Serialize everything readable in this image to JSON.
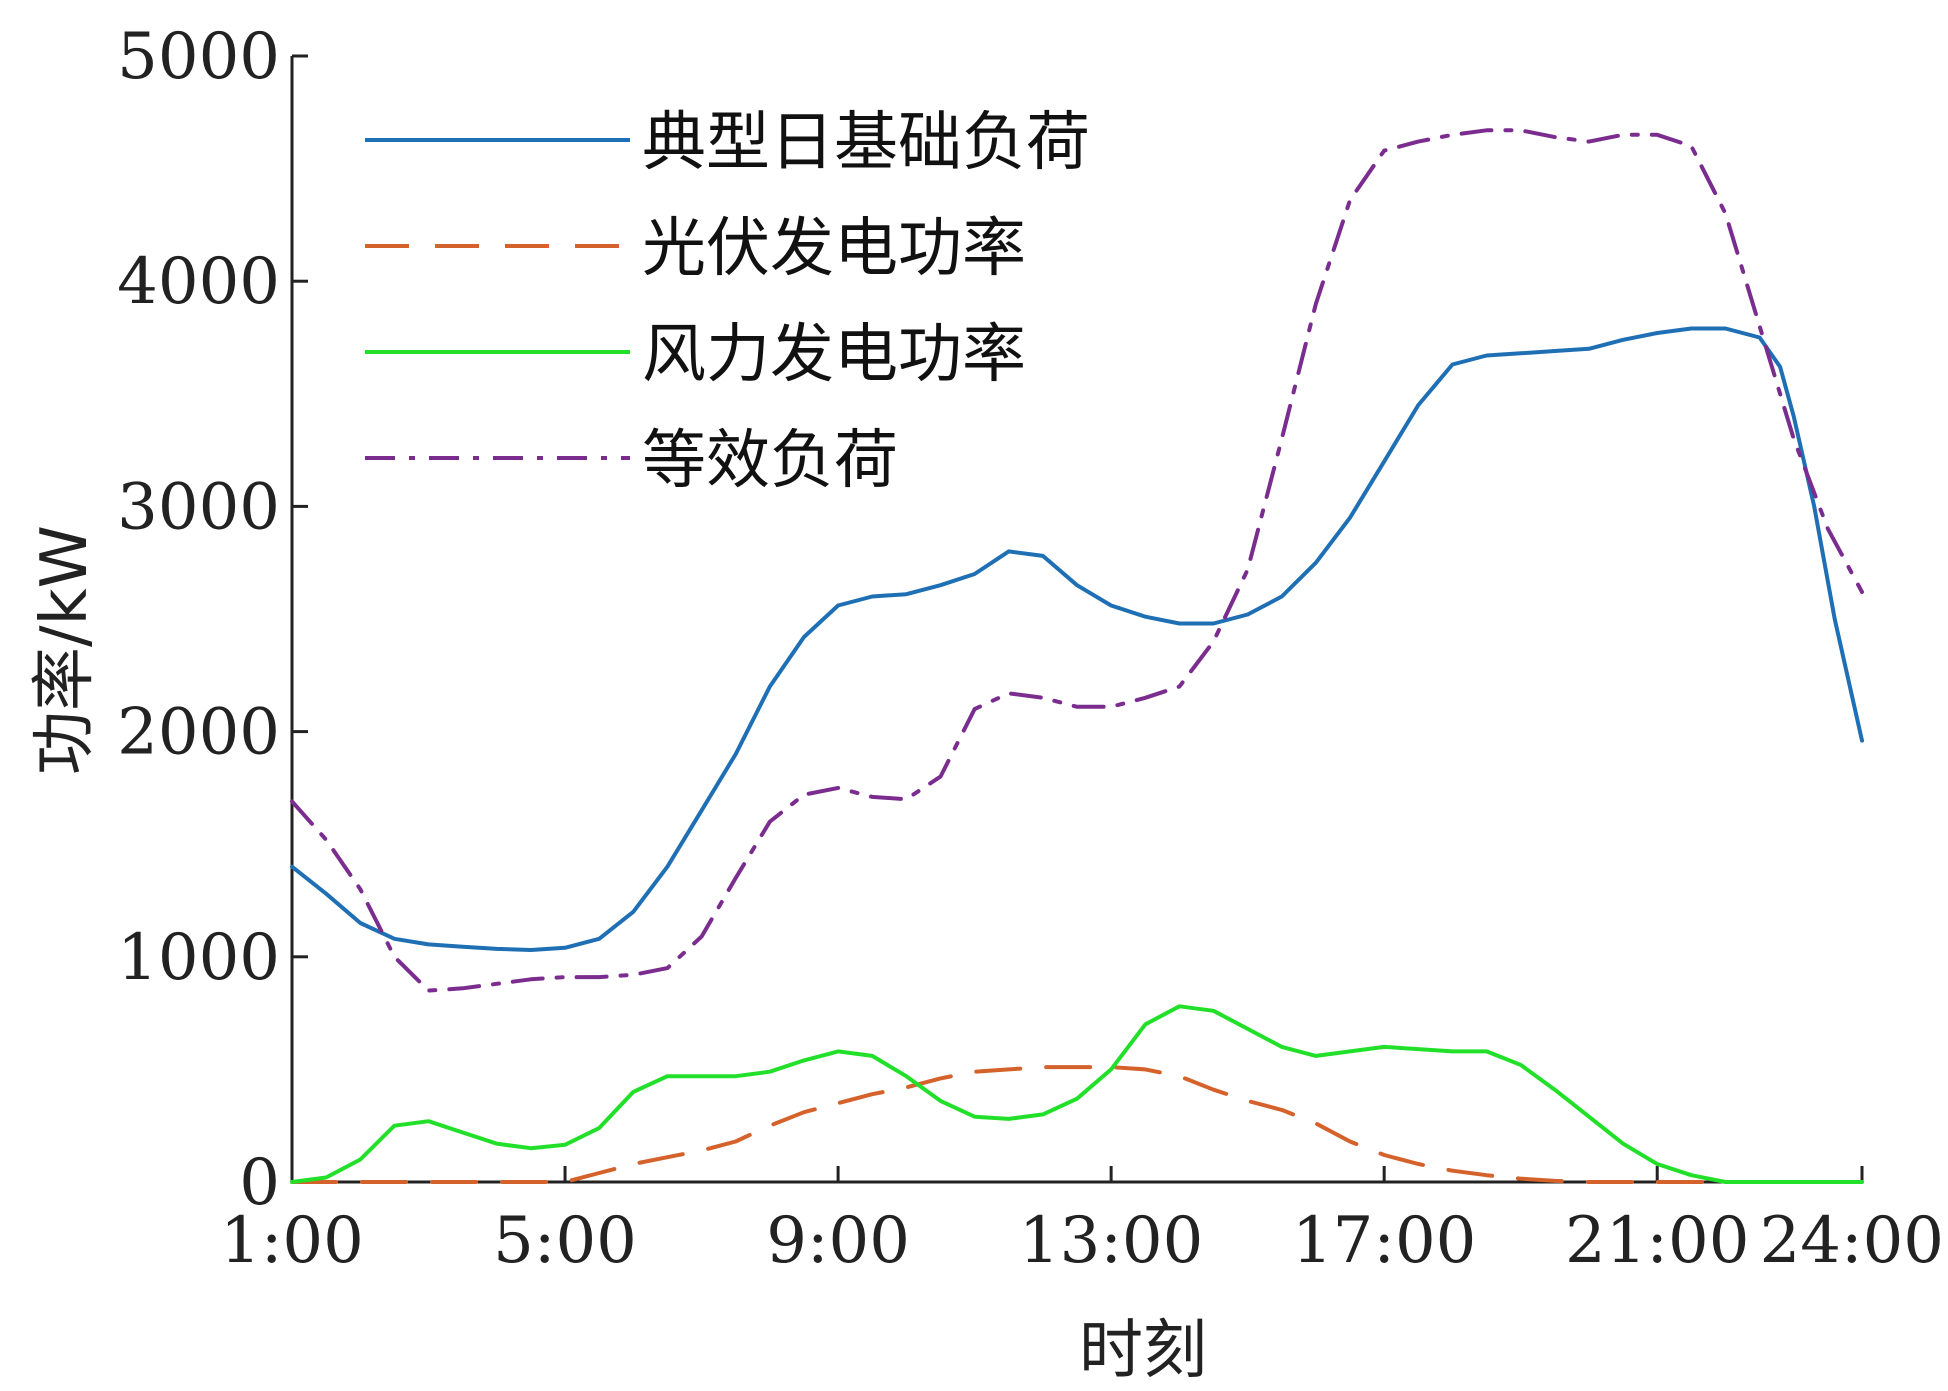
{
  "chart_data": {
    "type": "line",
    "xlabel": "时刻",
    "ylabel": "功率/kW",
    "x_range": [
      1,
      24
    ],
    "ylim": [
      0,
      5000
    ],
    "x_ticks": [
      {
        "value": 1,
        "label": "1:00"
      },
      {
        "value": 5,
        "label": "5:00"
      },
      {
        "value": 9,
        "label": "9:00"
      },
      {
        "value": 13,
        "label": "13:00"
      },
      {
        "value": 17,
        "label": "17:00"
      },
      {
        "value": 21,
        "label": "21:00"
      },
      {
        "value": 24,
        "label": "24:00"
      }
    ],
    "y_ticks": [
      {
        "value": 0,
        "label": "0"
      },
      {
        "value": 1000,
        "label": "1000"
      },
      {
        "value": 2000,
        "label": "2000"
      },
      {
        "value": 3000,
        "label": "3000"
      },
      {
        "value": 4000,
        "label": "4000"
      },
      {
        "value": 5000,
        "label": "5000"
      }
    ],
    "grid": false,
    "legend_position": "top-left",
    "series": [
      {
        "name": "典型日基础负荷",
        "color": "#1f6fb4",
        "dash": "solid",
        "points": [
          [
            1,
            1400
          ],
          [
            1.5,
            1280
          ],
          [
            2,
            1150
          ],
          [
            2.5,
            1080
          ],
          [
            3,
            1055
          ],
          [
            3.5,
            1045
          ],
          [
            4,
            1035
          ],
          [
            4.5,
            1030
          ],
          [
            5,
            1040
          ],
          [
            5.5,
            1080
          ],
          [
            6,
            1200
          ],
          [
            6.5,
            1400
          ],
          [
            7,
            1650
          ],
          [
            7.5,
            1900
          ],
          [
            8,
            2200
          ],
          [
            8.5,
            2420
          ],
          [
            9,
            2560
          ],
          [
            9.5,
            2600
          ],
          [
            10,
            2610
          ],
          [
            10.5,
            2650
          ],
          [
            11,
            2700
          ],
          [
            11.5,
            2800
          ],
          [
            12,
            2780
          ],
          [
            12.5,
            2650
          ],
          [
            13,
            2560
          ],
          [
            13.5,
            2510
          ],
          [
            14,
            2480
          ],
          [
            14.5,
            2480
          ],
          [
            15,
            2520
          ],
          [
            15.5,
            2600
          ],
          [
            16,
            2750
          ],
          [
            16.5,
            2950
          ],
          [
            17,
            3200
          ],
          [
            17.5,
            3450
          ],
          [
            18,
            3630
          ],
          [
            18.5,
            3670
          ],
          [
            19,
            3680
          ],
          [
            19.5,
            3690
          ],
          [
            20,
            3700
          ],
          [
            20.5,
            3740
          ],
          [
            21,
            3770
          ],
          [
            21.5,
            3790
          ],
          [
            22,
            3790
          ],
          [
            22.5,
            3750
          ],
          [
            22.8,
            3620
          ],
          [
            23,
            3400
          ],
          [
            23.3,
            3000
          ],
          [
            23.6,
            2500
          ],
          [
            24,
            1960
          ]
        ]
      },
      {
        "name": "光伏发电功率",
        "color": "#d4622a",
        "dash": "dashed",
        "points": [
          [
            1,
            0
          ],
          [
            5,
            0
          ],
          [
            5.5,
            40
          ],
          [
            6,
            80
          ],
          [
            6.5,
            110
          ],
          [
            7,
            140
          ],
          [
            7.5,
            180
          ],
          [
            8,
            250
          ],
          [
            8.5,
            310
          ],
          [
            9,
            350
          ],
          [
            9.5,
            390
          ],
          [
            10,
            420
          ],
          [
            10.5,
            460
          ],
          [
            11,
            490
          ],
          [
            11.5,
            500
          ],
          [
            12,
            510
          ],
          [
            12.5,
            510
          ],
          [
            13,
            510
          ],
          [
            13.5,
            500
          ],
          [
            14,
            470
          ],
          [
            14.5,
            410
          ],
          [
            15,
            360
          ],
          [
            15.5,
            320
          ],
          [
            16,
            260
          ],
          [
            16.5,
            180
          ],
          [
            17,
            120
          ],
          [
            17.5,
            80
          ],
          [
            18,
            50
          ],
          [
            18.5,
            30
          ],
          [
            19,
            15
          ],
          [
            19.5,
            5
          ],
          [
            20,
            0
          ],
          [
            24,
            0
          ]
        ]
      },
      {
        "name": "风力发电功率",
        "color": "#22e02a",
        "dash": "solid",
        "points": [
          [
            1,
            0
          ],
          [
            1.5,
            20
          ],
          [
            2,
            100
          ],
          [
            2.5,
            250
          ],
          [
            3,
            270
          ],
          [
            3.5,
            220
          ],
          [
            4,
            170
          ],
          [
            4.5,
            150
          ],
          [
            5,
            165
          ],
          [
            5.5,
            240
          ],
          [
            6,
            400
          ],
          [
            6.5,
            470
          ],
          [
            7,
            470
          ],
          [
            7.5,
            470
          ],
          [
            8,
            490
          ],
          [
            8.5,
            540
          ],
          [
            9,
            580
          ],
          [
            9.5,
            560
          ],
          [
            10,
            470
          ],
          [
            10.5,
            360
          ],
          [
            11,
            290
          ],
          [
            11.5,
            280
          ],
          [
            12,
            300
          ],
          [
            12.5,
            370
          ],
          [
            13,
            500
          ],
          [
            13.5,
            700
          ],
          [
            14,
            780
          ],
          [
            14.5,
            760
          ],
          [
            15,
            680
          ],
          [
            15.5,
            600
          ],
          [
            16,
            560
          ],
          [
            16.5,
            580
          ],
          [
            17,
            600
          ],
          [
            17.5,
            590
          ],
          [
            18,
            580
          ],
          [
            18.5,
            580
          ],
          [
            19,
            520
          ],
          [
            19.5,
            410
          ],
          [
            20,
            290
          ],
          [
            20.5,
            170
          ],
          [
            21,
            80
          ],
          [
            21.5,
            30
          ],
          [
            22,
            0
          ],
          [
            24,
            0
          ]
        ]
      },
      {
        "name": "等效负荷",
        "color": "#7b2d8f",
        "dash": "dashdot",
        "points": [
          [
            1,
            1690
          ],
          [
            1.5,
            1520
          ],
          [
            2,
            1300
          ],
          [
            2.5,
            1000
          ],
          [
            3,
            850
          ],
          [
            3.5,
            860
          ],
          [
            4,
            880
          ],
          [
            4.5,
            900
          ],
          [
            5,
            910
          ],
          [
            5.5,
            910
          ],
          [
            6,
            920
          ],
          [
            6.5,
            950
          ],
          [
            7,
            1090
          ],
          [
            7.5,
            1350
          ],
          [
            8,
            1600
          ],
          [
            8.5,
            1720
          ],
          [
            9,
            1750
          ],
          [
            9.5,
            1710
          ],
          [
            10,
            1700
          ],
          [
            10.5,
            1800
          ],
          [
            11,
            2100
          ],
          [
            11.5,
            2170
          ],
          [
            12,
            2150
          ],
          [
            12.5,
            2110
          ],
          [
            13,
            2110
          ],
          [
            13.5,
            2150
          ],
          [
            14,
            2200
          ],
          [
            14.5,
            2400
          ],
          [
            15,
            2720
          ],
          [
            15.5,
            3300
          ],
          [
            16,
            3900
          ],
          [
            16.5,
            4360
          ],
          [
            17,
            4580
          ],
          [
            17.5,
            4620
          ],
          [
            18,
            4650
          ],
          [
            18.5,
            4670
          ],
          [
            19,
            4670
          ],
          [
            19.5,
            4640
          ],
          [
            20,
            4620
          ],
          [
            20.5,
            4650
          ],
          [
            21,
            4650
          ],
          [
            21.5,
            4600
          ],
          [
            22,
            4300
          ],
          [
            22.5,
            3800
          ],
          [
            23,
            3300
          ],
          [
            23.5,
            2900
          ],
          [
            24,
            2620
          ]
        ]
      }
    ]
  }
}
